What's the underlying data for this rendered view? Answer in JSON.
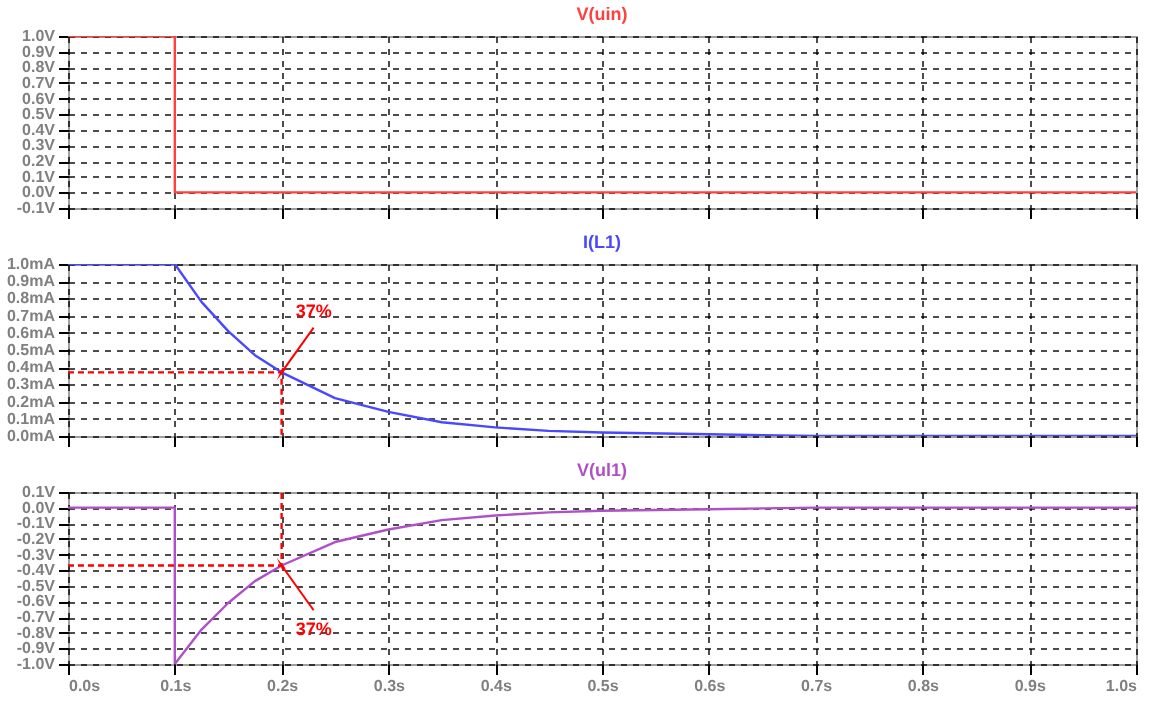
{
  "chart_data": [
    {
      "type": "line",
      "xlim": [
        0,
        1
      ],
      "ylim": [
        -0.1,
        1
      ],
      "grid": true,
      "tick_labels": "y",
      "line_style": "solid",
      "marker": "none",
      "xticks": [
        0,
        0.1,
        0.2,
        0.3,
        0.4,
        0.5,
        0.6,
        0.7,
        0.8,
        0.9,
        1
      ],
      "yticks": [
        {
          "value": -0.1,
          "label": "-0.1V"
        },
        {
          "value": 0,
          "label": "0.0V"
        },
        {
          "value": 0.1,
          "label": "0.1V"
        },
        {
          "value": 0.2,
          "label": "0.2V"
        },
        {
          "value": 0.3,
          "label": "0.3V"
        },
        {
          "value": 0.4,
          "label": "0.4V"
        },
        {
          "value": 0.5,
          "label": "0.5V"
        },
        {
          "value": 0.6,
          "label": "0.6V"
        },
        {
          "value": 0.7,
          "label": "0.7V"
        },
        {
          "value": 0.8,
          "label": "0.8V"
        },
        {
          "value": 0.9,
          "label": "0.9V"
        },
        {
          "value": 1,
          "label": "1.0V"
        }
      ],
      "series": [
        {
          "name": "V(uin)",
          "color": "#ff4040",
          "x": [
            0,
            0.1,
            0.1,
            1
          ],
          "values": [
            1,
            1,
            0,
            0
          ]
        }
      ]
    },
    {
      "type": "line",
      "xlim": [
        0,
        1
      ],
      "ylim": [
        0,
        1
      ],
      "grid": true,
      "tick_labels": "y",
      "line_style": "solid",
      "marker": "none",
      "xticks": [
        0,
        0.1,
        0.2,
        0.3,
        0.4,
        0.5,
        0.6,
        0.7,
        0.8,
        0.9,
        1
      ],
      "yticks": [
        {
          "value": 0,
          "label": "0.0mA"
        },
        {
          "value": 0.1,
          "label": "0.1mA"
        },
        {
          "value": 0.2,
          "label": "0.2mA"
        },
        {
          "value": 0.3,
          "label": "0.3mA"
        },
        {
          "value": 0.4,
          "label": "0.4mA"
        },
        {
          "value": 0.5,
          "label": "0.5mA"
        },
        {
          "value": 0.6,
          "label": "0.6mA"
        },
        {
          "value": 0.7,
          "label": "0.7mA"
        },
        {
          "value": 0.8,
          "label": "0.8mA"
        },
        {
          "value": 0.9,
          "label": "0.9mA"
        },
        {
          "value": 1,
          "label": "1.0mA"
        }
      ],
      "series": [
        {
          "name": "I(L1)",
          "color": "#4848ff",
          "x": [
            0,
            0.1,
            0.125,
            0.15,
            0.175,
            0.2,
            0.25,
            0.3,
            0.35,
            0.4,
            0.45,
            0.5,
            0.6,
            0.7,
            0.8,
            0.9,
            1
          ],
          "values": [
            1,
            1,
            0.78,
            0.61,
            0.47,
            0.37,
            0.22,
            0.14,
            0.08,
            0.05,
            0.03,
            0.02,
            0.01,
            0,
            0,
            0,
            0
          ]
        },
        {
          "color": "#ff0000",
          "line_style": "dashed",
          "x": [
            0,
            0.2,
            0.2
          ],
          "values": [
            0.37,
            0.37,
            0
          ]
        }
      ],
      "annotations": [
        {
          "text": "37%",
          "x": 0.2,
          "y": 0.37
        }
      ]
    },
    {
      "type": "line",
      "xlim": [
        0,
        1
      ],
      "ylim": [
        -1,
        0.1
      ],
      "grid": true,
      "line_style": "solid",
      "marker": "none",
      "xticks": [
        {
          "value": 0,
          "label": "0.0s"
        },
        {
          "value": 0.1,
          "label": "0.1s"
        },
        {
          "value": 0.2,
          "label": "0.2s"
        },
        {
          "value": 0.3,
          "label": "0.3s"
        },
        {
          "value": 0.4,
          "label": "0.4s"
        },
        {
          "value": 0.5,
          "label": "0.5s"
        },
        {
          "value": 0.6,
          "label": "0.6s"
        },
        {
          "value": 0.7,
          "label": "0.7s"
        },
        {
          "value": 0.8,
          "label": "0.8s"
        },
        {
          "value": 0.9,
          "label": "0.9s"
        },
        {
          "value": 1,
          "label": "1.0s"
        }
      ],
      "yticks": [
        {
          "value": -1,
          "label": "-1.0V"
        },
        {
          "value": -0.9,
          "label": "-0.9V"
        },
        {
          "value": -0.8,
          "label": "-0.8V"
        },
        {
          "value": -0.7,
          "label": "-0.7V"
        },
        {
          "value": -0.6,
          "label": "-0.6V"
        },
        {
          "value": -0.5,
          "label": "-0.5V"
        },
        {
          "value": -0.4,
          "label": "-0.4V"
        },
        {
          "value": -0.3,
          "label": "-0.3V"
        },
        {
          "value": -0.2,
          "label": "-0.2V"
        },
        {
          "value": -0.1,
          "label": "-0.1V"
        },
        {
          "value": 0,
          "label": "0.0V"
        },
        {
          "value": 0.1,
          "label": "0.1V"
        }
      ],
      "series": [
        {
          "name": "V(ul1)",
          "color": "#b050c8",
          "x": [
            0,
            0.1,
            0.1,
            0.125,
            0.15,
            0.175,
            0.2,
            0.25,
            0.3,
            0.35,
            0.4,
            0.45,
            0.5,
            0.6,
            0.7,
            0.8,
            0.9,
            1
          ],
          "values": [
            0,
            0,
            -1,
            -0.78,
            -0.61,
            -0.47,
            -0.37,
            -0.22,
            -0.14,
            -0.08,
            -0.05,
            -0.03,
            -0.02,
            -0.01,
            0,
            0,
            0,
            0
          ]
        },
        {
          "color": "#ff0000",
          "line_style": "dashed",
          "x": [
            0,
            0.2,
            0.2
          ],
          "values": [
            -0.37,
            -0.37,
            0.1
          ]
        }
      ],
      "annotations": [
        {
          "text": "37%",
          "x": 0.2,
          "y": -0.37
        }
      ]
    }
  ]
}
